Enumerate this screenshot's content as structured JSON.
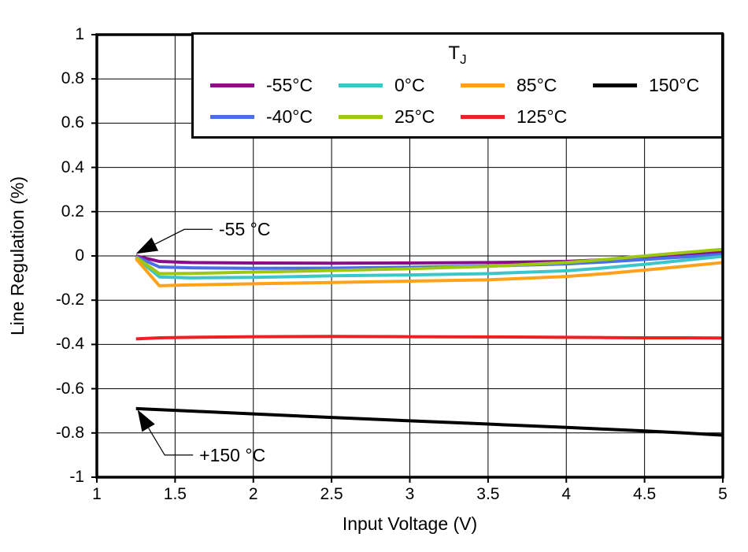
{
  "figure": {
    "background_color": "#ffffff",
    "axis_color": "#000000"
  },
  "legend": {
    "title": "T",
    "title_sub": "J"
  },
  "chart_data": {
    "type": "line",
    "title": "",
    "xlabel": "Input Voltage (V)",
    "ylabel": "Line Regulation (%)",
    "xlim": [
      1,
      5
    ],
    "ylim": [
      -1,
      1
    ],
    "xticks": [
      "1",
      "1.5",
      "2",
      "2.5",
      "3",
      "3.5",
      "4",
      "4.5",
      "5"
    ],
    "yticks": [
      "1",
      "0.8",
      "0.6",
      "0.4",
      "0.2",
      "0",
      "-0.2",
      "-0.4",
      "-0.6",
      "-0.8",
      "-1"
    ],
    "grid": true,
    "legend_title": "TJ",
    "legend_position": "top-right-inside",
    "legend_rows": [
      [
        "-55°C",
        "0°C",
        "85°C",
        "150°C"
      ],
      [
        "-40°C",
        "25°C",
        "125°C"
      ]
    ],
    "x": [
      1.25,
      1.4,
      1.6,
      2.0,
      2.5,
      3.0,
      3.5,
      4.0,
      4.25,
      4.5,
      4.75,
      5.0
    ],
    "series": [
      {
        "name": "-55°C",
        "color": "#8A0D8A",
        "values": [
          0.0,
          -0.025,
          -0.03,
          -0.032,
          -0.033,
          -0.032,
          -0.03,
          -0.025,
          -0.017,
          -0.007,
          0.005,
          0.016
        ]
      },
      {
        "name": "-40°C",
        "color": "#4A6FE8",
        "values": [
          -0.003,
          -0.05,
          -0.054,
          -0.056,
          -0.055,
          -0.051,
          -0.046,
          -0.036,
          -0.027,
          -0.016,
          -0.005,
          0.007
        ]
      },
      {
        "name": "0°C",
        "color": "#3BC6C8",
        "values": [
          -0.008,
          -0.095,
          -0.099,
          -0.097,
          -0.09,
          -0.086,
          -0.08,
          -0.067,
          -0.054,
          -0.038,
          -0.02,
          -0.002
        ]
      },
      {
        "name": "25°C",
        "color": "#9CC813",
        "values": [
          -0.006,
          -0.08,
          -0.079,
          -0.073,
          -0.066,
          -0.058,
          -0.047,
          -0.03,
          -0.016,
          0.0,
          0.015,
          0.03
        ]
      },
      {
        "name": "85°C",
        "color": "#FFA21A",
        "values": [
          -0.013,
          -0.135,
          -0.131,
          -0.126,
          -0.12,
          -0.114,
          -0.108,
          -0.093,
          -0.08,
          -0.064,
          -0.047,
          -0.03
        ]
      },
      {
        "name": "125°C",
        "color": "#ED2024",
        "values": [
          -0.375,
          -0.37,
          -0.368,
          -0.365,
          -0.364,
          -0.365,
          -0.366,
          -0.368,
          -0.369,
          -0.37,
          -0.37,
          -0.371
        ]
      },
      {
        "name": "150°C",
        "color": "#000000",
        "values": [
          -0.69,
          -0.695,
          -0.701,
          -0.714,
          -0.73,
          -0.745,
          -0.76,
          -0.775,
          -0.783,
          -0.791,
          -0.8,
          -0.81
        ]
      }
    ],
    "annotations": [
      {
        "text": "-55 °C",
        "target_x": 1.25,
        "target_y": 0.01,
        "text_x": 1.78,
        "text_y": 0.12
      },
      {
        "text": "+150 °C",
        "target_x": 1.26,
        "target_y": -0.695,
        "text_x": 1.655,
        "text_y": -0.9
      }
    ]
  }
}
